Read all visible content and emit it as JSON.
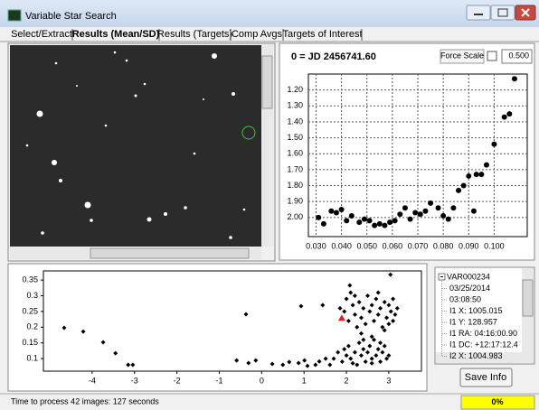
{
  "window": {
    "title": "Variable Star Search"
  },
  "tabs": [
    "Select/Extract",
    "Results (Mean/SD)",
    "Results (Targets)",
    "Comp Avgs",
    "Targets of Interest"
  ],
  "light_curve": {
    "header": "0 = JD 2456741.60",
    "force_scale_label": "Force Scale",
    "scale_value": "0.500"
  },
  "chart_data": [
    {
      "type": "scatter",
      "color": "#000000",
      "grid": true,
      "x": [
        0.031,
        0.033,
        0.036,
        0.038,
        0.04,
        0.042,
        0.044,
        0.047,
        0.049,
        0.051,
        0.053,
        0.055,
        0.057,
        0.059,
        0.061,
        0.063,
        0.065,
        0.067,
        0.069,
        0.071,
        0.073,
        0.075,
        0.078,
        0.08,
        0.082,
        0.084,
        0.086,
        0.088,
        0.09,
        0.092,
        0.093,
        0.095,
        0.097,
        0.1,
        0.104,
        0.106,
        0.108
      ],
      "values": [
        2.0,
        2.04,
        1.96,
        1.97,
        1.95,
        2.02,
        1.99,
        2.03,
        2.01,
        2.02,
        2.05,
        2.04,
        2.05,
        2.03,
        2.02,
        1.98,
        1.94,
        2.01,
        1.97,
        1.98,
        1.96,
        1.91,
        1.94,
        1.99,
        2.01,
        1.94,
        1.83,
        1.8,
        1.74,
        1.96,
        1.73,
        1.73,
        1.67,
        1.54,
        1.37,
        1.35,
        1.13
      ],
      "xlim": [
        0.027,
        0.113
      ],
      "xticks": [
        {
          "value": 0.03,
          "label": "0.030"
        },
        {
          "value": 0.04,
          "label": "0.040"
        },
        {
          "value": 0.05,
          "label": "0.050"
        },
        {
          "value": 0.06,
          "label": "0.060"
        },
        {
          "value": 0.07,
          "label": "0.070"
        },
        {
          "value": 0.08,
          "label": "0.080"
        },
        {
          "value": 0.09,
          "label": "0.090"
        },
        {
          "value": 0.1,
          "label": "0.100"
        }
      ],
      "ylim": [
        2.12,
        1.1
      ],
      "yticks": [
        {
          "value": 1.2,
          "label": "1.20"
        },
        {
          "value": 1.3,
          "label": "1.30"
        },
        {
          "value": 1.4,
          "label": "1.40"
        },
        {
          "value": 1.5,
          "label": "1.50"
        },
        {
          "value": 1.6,
          "label": "1.60"
        },
        {
          "value": 1.7,
          "label": "1.70"
        },
        {
          "value": 1.8,
          "label": "1.80"
        },
        {
          "value": 1.9,
          "label": "1.90"
        },
        {
          "value": 2.0,
          "label": "2.00"
        }
      ]
    },
    {
      "type": "scatter",
      "color": "#000000",
      "grid": false,
      "x": [
        -4.66,
        -4.21,
        -3.74,
        -3.45,
        -3.15,
        -3.04,
        -0.37,
        -0.59,
        -0.31,
        -0.14,
        0.25,
        0.5,
        0.65,
        0.87,
        1.01,
        1.08,
        0.93,
        1.27,
        1.36,
        1.51,
        1.44,
        1.61,
        3.04,
        2.08,
        1.85,
        1.95,
        2.0,
        2.05,
        2.1,
        2.15,
        2.2,
        2.25,
        2.3,
        2.35,
        2.4,
        2.45,
        2.5,
        2.55,
        2.6,
        2.65,
        2.7,
        2.75,
        2.8,
        2.85,
        2.9,
        2.95,
        3.0,
        3.05,
        3.1,
        3.15,
        3.2,
        2.35,
        2.6,
        2.9,
        3.0,
        2.2,
        2.75,
        3.1,
        1.7,
        1.8,
        1.9,
        2.0,
        2.05,
        2.1,
        2.2,
        2.25,
        2.3,
        2.35,
        2.4,
        2.45,
        2.5,
        2.55,
        2.6,
        2.65,
        2.7,
        2.75,
        2.8,
        2.85,
        2.9,
        2.95,
        3.0,
        2.15,
        2.6,
        1.95,
        2.4,
        2.8
      ],
      "values": [
        0.198,
        0.186,
        0.152,
        0.117,
        0.08,
        0.08,
        0.241,
        0.094,
        0.086,
        0.094,
        0.083,
        0.08,
        0.089,
        0.086,
        0.094,
        0.077,
        0.267,
        0.08,
        0.091,
        0.1,
        0.27,
        0.08,
        0.367,
        0.333,
        0.26,
        0.25,
        0.29,
        0.22,
        0.31,
        0.27,
        0.24,
        0.2,
        0.28,
        0.23,
        0.26,
        0.21,
        0.3,
        0.25,
        0.27,
        0.22,
        0.29,
        0.24,
        0.26,
        0.2,
        0.28,
        0.23,
        0.27,
        0.25,
        0.29,
        0.24,
        0.26,
        0.18,
        0.17,
        0.19,
        0.21,
        0.3,
        0.31,
        0.22,
        0.1,
        0.12,
        0.09,
        0.11,
        0.14,
        0.1,
        0.12,
        0.08,
        0.15,
        0.11,
        0.13,
        0.09,
        0.12,
        0.14,
        0.1,
        0.16,
        0.11,
        0.13,
        0.09,
        0.12,
        0.14,
        0.1,
        0.11,
        0.085,
        0.085,
        0.13,
        0.16,
        0.15
      ],
      "highlight": {
        "x": 1.89,
        "value": 0.229,
        "color": "#e02020"
      },
      "xlim": [
        -5.15,
        3.77
      ],
      "xticks": [
        -4,
        -3,
        -2,
        -1,
        0,
        1,
        2,
        3
      ],
      "ylim": [
        0.06,
        0.379
      ],
      "yticks": [
        0.1,
        0.15,
        0.2,
        0.25,
        0.3,
        0.35
      ]
    }
  ],
  "tree": [
    "VAR000234",
    "03/25/2014",
    "03:08:50",
    "I1 X: 1005.015",
    "I1 Y: 128.957",
    "I1 RA: 04:16:00.90",
    "I1 DC: +12:17:12.4",
    "I2 X: 1004.983"
  ],
  "save_button": "Save Info",
  "status": {
    "message": "Time to process 42 images: 127 seconds",
    "progress": "0%"
  }
}
